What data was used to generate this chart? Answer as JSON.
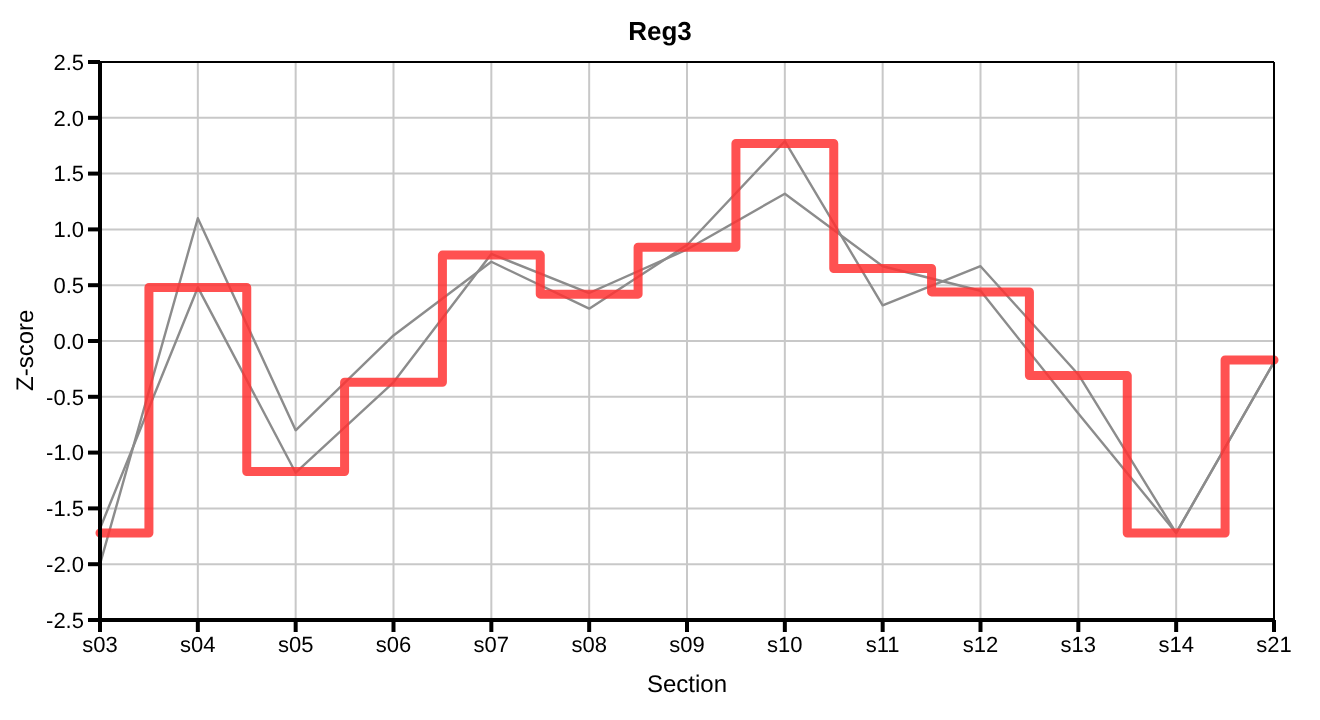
{
  "chart_data": {
    "type": "line",
    "title": "Reg3",
    "xlabel": "Section",
    "ylabel": "Z-score",
    "categories": [
      "s03",
      "s04",
      "s05",
      "s06",
      "s07",
      "s08",
      "s09",
      "s10",
      "s11",
      "s12",
      "s13",
      "s14",
      "s21"
    ],
    "series": [
      {
        "color": "#8c8c8c",
        "values": [
          -2.0,
          1.1,
          -0.8,
          0.05,
          0.71,
          0.29,
          0.86,
          1.79,
          0.32,
          0.67,
          -0.3,
          -1.72,
          -0.19
        ]
      },
      {
        "color": "#8c8c8c",
        "values": [
          -1.68,
          0.48,
          -1.18,
          -0.37,
          0.78,
          0.43,
          0.82,
          1.32,
          0.67,
          0.45,
          -0.65,
          -1.72,
          -0.19
        ]
      },
      {
        "type": "step",
        "color": "#ff3333",
        "values": [
          -1.72,
          0.48,
          -1.17,
          -0.37,
          0.77,
          0.42,
          0.84,
          1.77,
          0.65,
          0.44,
          -0.31,
          -1.72,
          -0.17
        ]
      }
    ],
    "ylim": [
      -2.5,
      2.5
    ],
    "yticks": [
      {
        "value": -2.5,
        "label": "-2.5"
      },
      {
        "value": -2,
        "label": "-2.0"
      },
      {
        "value": -1.5,
        "label": "-1.5"
      },
      {
        "value": -1,
        "label": "-1.0"
      },
      {
        "value": -0.5,
        "label": "-0.5"
      },
      {
        "value": 0,
        "label": "0.0"
      },
      {
        "value": 0.5,
        "label": "0.5"
      },
      {
        "value": 1,
        "label": "1.0"
      },
      {
        "value": 1.5,
        "label": "1.5"
      },
      {
        "value": 2,
        "label": "2.0"
      },
      {
        "value": 2.5,
        "label": "2.5"
      }
    ],
    "grid": true,
    "marker": "none"
  }
}
